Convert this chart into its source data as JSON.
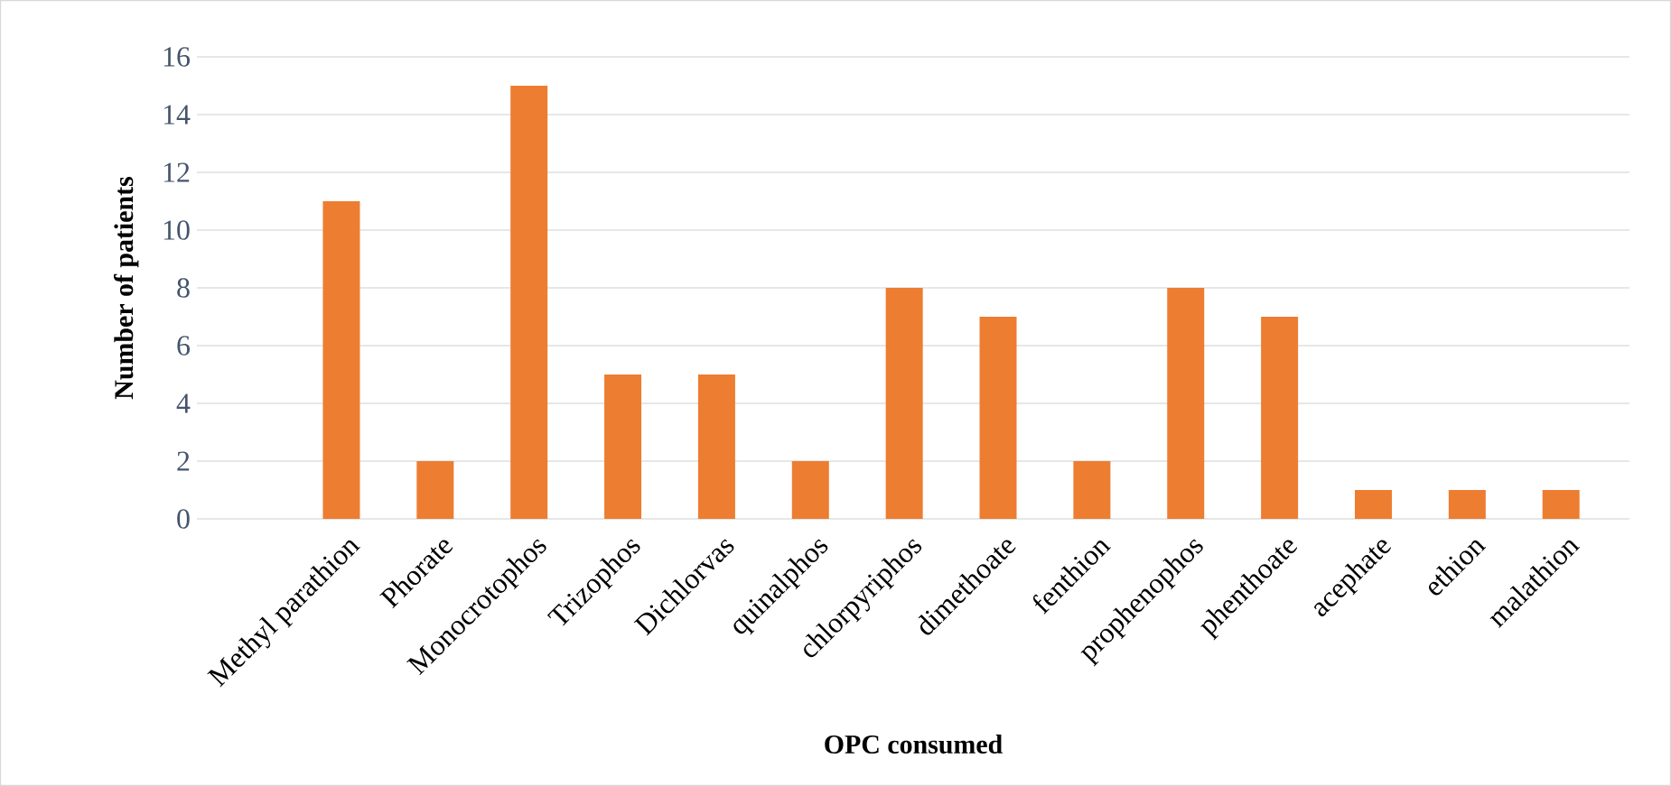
{
  "chart_data": {
    "type": "bar",
    "xlabel": "OPC consumed",
    "ylabel": "Number of patients",
    "categories": [
      "Methyl parathion",
      "Phorate",
      "Monocrotophos",
      "Trizophos",
      "Dichlorvas",
      "quinalphos",
      "chlorpyriphos",
      "dimethoate",
      "fenthion",
      "prophenophos",
      "phenthoate",
      "acephate",
      "ethion",
      "malathion"
    ],
    "values": [
      11,
      2,
      15,
      5,
      5,
      2,
      8,
      7,
      2,
      8,
      7,
      1,
      1,
      1
    ],
    "color": "#ed7d31",
    "ylim": [
      0,
      16
    ],
    "yticks": [
      0,
      2,
      4,
      6,
      8,
      10,
      12,
      14,
      16
    ],
    "grid": "y"
  }
}
